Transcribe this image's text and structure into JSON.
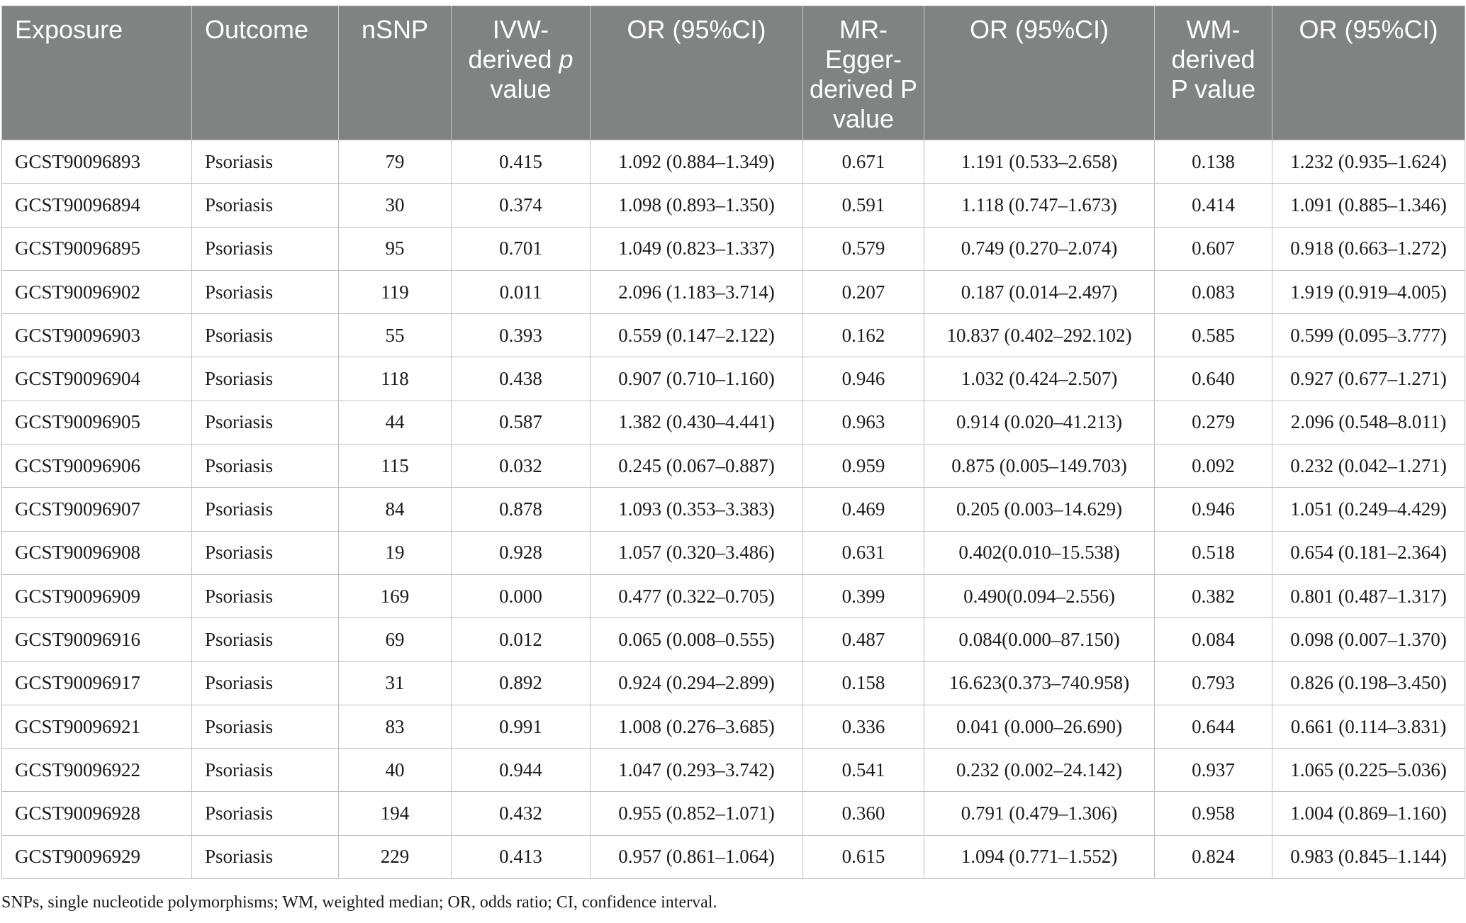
{
  "table": {
    "headers": [
      {
        "text": "Exposure"
      },
      {
        "text": "Outcome"
      },
      {
        "text": "nSNP"
      },
      {
        "pre": "IVW-derived ",
        "italic": "p",
        "post": " value"
      },
      {
        "text": "OR (95%CI)"
      },
      {
        "text": "MR-Egger-derived P value"
      },
      {
        "text": "OR (95%CI)"
      },
      {
        "text": "WM-derived P value"
      },
      {
        "text": "OR (95%CI)"
      }
    ],
    "rows": [
      [
        "GCST90096893",
        "Psoriasis",
        "79",
        "0.415",
        "1.092 (0.884–1.349)",
        "0.671",
        "1.191 (0.533–2.658)",
        "0.138",
        "1.232 (0.935–1.624)"
      ],
      [
        "GCST90096894",
        "Psoriasis",
        "30",
        "0.374",
        "1.098 (0.893–1.350)",
        "0.591",
        "1.118 (0.747–1.673)",
        "0.414",
        "1.091 (0.885–1.346)"
      ],
      [
        "GCST90096895",
        "Psoriasis",
        "95",
        "0.701",
        "1.049 (0.823–1.337)",
        "0.579",
        "0.749 (0.270–2.074)",
        "0.607",
        "0.918 (0.663–1.272)"
      ],
      [
        "GCST90096902",
        "Psoriasis",
        "119",
        "0.011",
        "2.096 (1.183–3.714)",
        "0.207",
        "0.187 (0.014–2.497)",
        "0.083",
        "1.919 (0.919–4.005)"
      ],
      [
        "GCST90096903",
        "Psoriasis",
        "55",
        "0.393",
        "0.559 (0.147–2.122)",
        "0.162",
        "10.837 (0.402–292.102)",
        "0.585",
        "0.599 (0.095–3.777)"
      ],
      [
        "GCST90096904",
        "Psoriasis",
        "118",
        "0.438",
        "0.907 (0.710–1.160)",
        "0.946",
        "1.032 (0.424–2.507)",
        "0.640",
        "0.927 (0.677–1.271)"
      ],
      [
        "GCST90096905",
        "Psoriasis",
        "44",
        "0.587",
        "1.382 (0.430–4.441)",
        "0.963",
        "0.914 (0.020–41.213)",
        "0.279",
        "2.096 (0.548–8.011)"
      ],
      [
        "GCST90096906",
        "Psoriasis",
        "115",
        "0.032",
        "0.245 (0.067–0.887)",
        "0.959",
        "0.875 (0.005–149.703)",
        "0.092",
        "0.232 (0.042–1.271)"
      ],
      [
        "GCST90096907",
        "Psoriasis",
        "84",
        "0.878",
        "1.093 (0.353–3.383)",
        "0.469",
        "0.205 (0.003–14.629)",
        "0.946",
        "1.051 (0.249–4.429)"
      ],
      [
        "GCST90096908",
        "Psoriasis",
        "19",
        "0.928",
        "1.057 (0.320–3.486)",
        "0.631",
        "0.402(0.010–15.538)",
        "0.518",
        "0.654 (0.181–2.364)"
      ],
      [
        "GCST90096909",
        "Psoriasis",
        "169",
        "0.000",
        "0.477 (0.322–0.705)",
        "0.399",
        "0.490(0.094–2.556)",
        "0.382",
        "0.801 (0.487–1.317)"
      ],
      [
        "GCST90096916",
        "Psoriasis",
        "69",
        "0.012",
        "0.065 (0.008–0.555)",
        "0.487",
        "0.084(0.000–87.150)",
        "0.084",
        "0.098 (0.007–1.370)"
      ],
      [
        "GCST90096917",
        "Psoriasis",
        "31",
        "0.892",
        "0.924 (0.294–2.899)",
        "0.158",
        "16.623(0.373–740.958)",
        "0.793",
        "0.826 (0.198–3.450)"
      ],
      [
        "GCST90096921",
        "Psoriasis",
        "83",
        "0.991",
        "1.008 (0.276–3.685)",
        "0.336",
        "0.041 (0.000–26.690)",
        "0.644",
        "0.661 (0.114–3.831)"
      ],
      [
        "GCST90096922",
        "Psoriasis",
        "40",
        "0.944",
        "1.047 (0.293–3.742)",
        "0.541",
        "0.232 (0.002–24.142)",
        "0.937",
        "1.065 (0.225–5.036)"
      ],
      [
        "GCST90096928",
        "Psoriasis",
        "194",
        "0.432",
        "0.955 (0.852–1.071)",
        "0.360",
        "0.791 (0.479–1.306)",
        "0.958",
        "1.004 (0.869–1.160)"
      ],
      [
        "GCST90096929",
        "Psoriasis",
        "229",
        "0.413",
        "0.957 (0.861–1.064)",
        "0.615",
        "1.094 (0.771–1.552)",
        "0.824",
        "0.983 (0.845–1.144)"
      ]
    ]
  },
  "footnote": "SNPs, single nucleotide polymorphisms; WM, weighted median; OR, odds ratio; CI, confidence interval.",
  "colors": {
    "header_background": "#808381",
    "header_text": "#ffffff",
    "grid_line": "#bfbfbf"
  }
}
